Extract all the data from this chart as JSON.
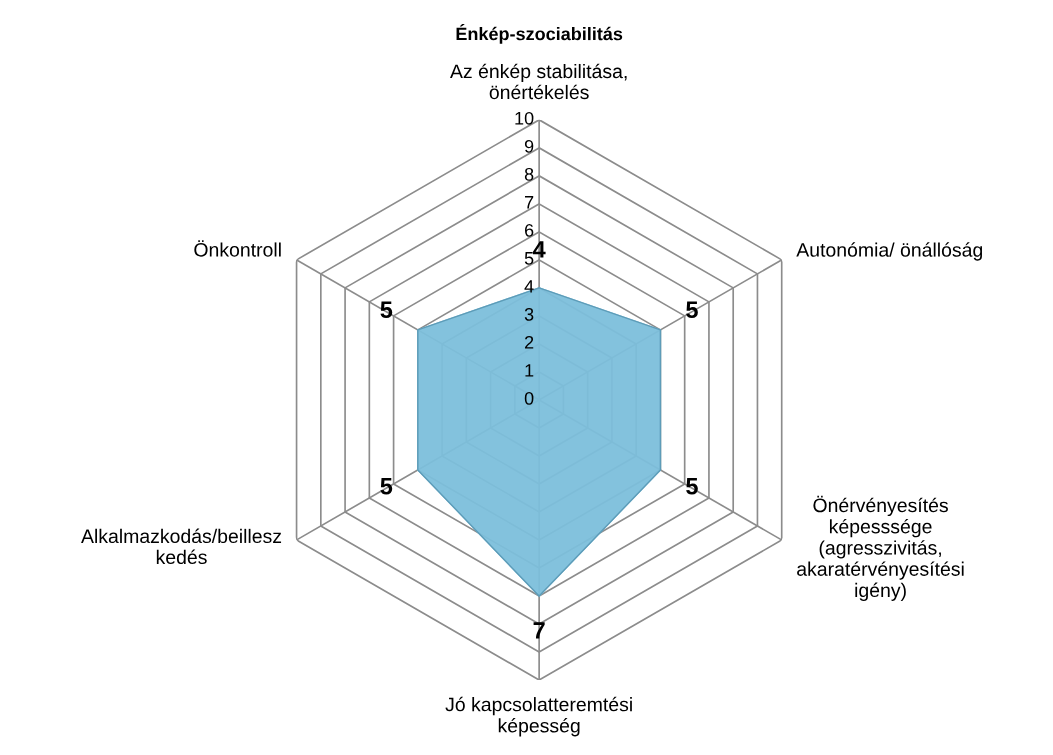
{
  "chart_data": {
    "type": "radar",
    "title": "Énkép-szociabilitás",
    "categories": [
      "Az énkép stabilitása,\nönértékelés",
      "Autonómia/ önállóság",
      "Önérvényesítés\nképesssége\n(agresszivitás,\nakaratérvényesítési\nigény)",
      "Jó kapcsolatteremtési\nképesség",
      "Alkalmazkodás/beillesz\nkedés",
      "Önkontroll"
    ],
    "series": [
      {
        "color": "#7dbfdc",
        "values": [
          4,
          5,
          5,
          7,
          5,
          5
        ]
      }
    ],
    "ylim": [
      0,
      10
    ],
    "yticks": [
      0,
      1,
      2,
      3,
      4,
      5,
      6,
      7,
      8,
      9,
      10
    ],
    "grid": true,
    "data_labels": true,
    "legend": false
  }
}
